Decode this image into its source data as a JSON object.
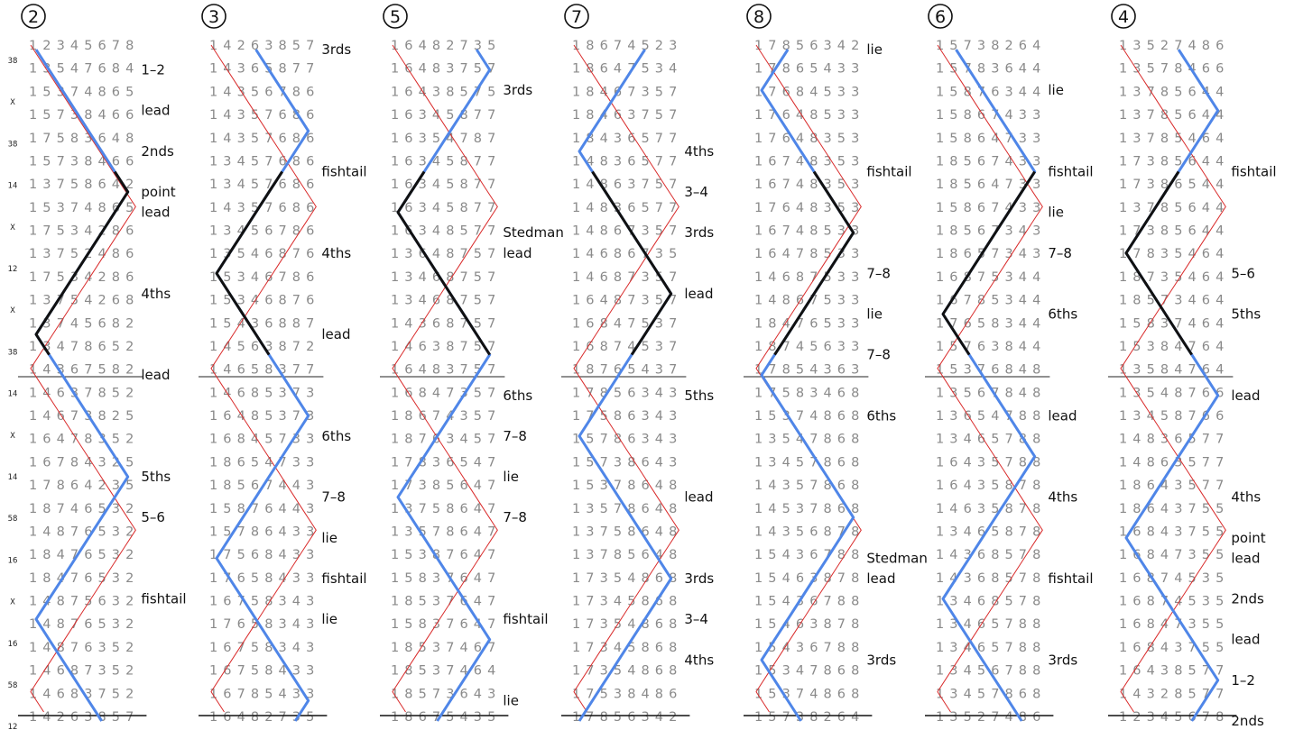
{
  "colors": {
    "red": "#d92b2b",
    "blue": "#4f86e8",
    "black": "#111111",
    "digits": "#8a8a8a",
    "rule": "#222222"
  },
  "side_notation": [
    "38",
    "X",
    "38",
    "14",
    "X",
    "12",
    "X",
    "38",
    "14",
    "X",
    "14",
    "58",
    "16",
    "X",
    "16",
    "58",
    "12"
  ],
  "columns": [
    {
      "number": "2",
      "rows": [
        "12345678",
        "13547684",
        "15374865",
        "15738466",
        "17583648",
        "15738466",
        "13758642",
        "15374865",
        "17534286",
        "13752486",
        "17534286",
        "13754268",
        "13745682",
        "13478652",
        "14367582",
        "14637852",
        "14673825",
        "16478352",
        "16784325",
        "17864235",
        "18746532",
        "14876532",
        "18476532",
        "18476532",
        "14875632",
        "14876532",
        "14876352",
        "14687352",
        "14683752",
        "14263857"
      ],
      "labels": [
        {
          "text": "1–2",
          "row": 1
        },
        {
          "text": "lead",
          "row": 3
        },
        {
          "text": "2nds",
          "row": 5
        },
        {
          "text": "point",
          "row": 7
        },
        {
          "text": "lead",
          "row": 8
        },
        {
          "text": "4ths",
          "row": 12
        },
        {
          "text": "lead",
          "row": 16
        },
        {
          "text": "5ths",
          "row": 21
        },
        {
          "text": "5–6",
          "row": 23
        },
        {
          "text": "fishtail",
          "row": 27
        }
      ]
    },
    {
      "number": "3",
      "rows": [
        "14263857",
        "14365877",
        "14356786",
        "14357686",
        "14357686",
        "13457686",
        "13457686",
        "14357686",
        "13456786",
        "13546876",
        "15346786",
        "15346876",
        "15436887",
        "14563872",
        "14658377",
        "14685373",
        "16485373",
        "16845733",
        "18654733",
        "18567443",
        "15876443",
        "15786433",
        "17568433",
        "17658433",
        "16758343",
        "17658343",
        "16758343",
        "16758433",
        "16785433",
        "16482735"
      ],
      "labels": [
        {
          "text": "3rds",
          "row": 0
        },
        {
          "text": "fishtail",
          "row": 6
        },
        {
          "text": "4ths",
          "row": 10
        },
        {
          "text": "lead",
          "row": 14
        },
        {
          "text": "6ths",
          "row": 19
        },
        {
          "text": "7–8",
          "row": 22
        },
        {
          "text": "lie",
          "row": 24
        },
        {
          "text": "fishtail",
          "row": 26
        },
        {
          "text": "lie",
          "row": 28
        }
      ]
    },
    {
      "number": "5",
      "rows": [
        "16482735",
        "16483757",
        "16438575",
        "16345877",
        "16354787",
        "16345877",
        "16345877",
        "16345877",
        "16348577",
        "13648757",
        "13468757",
        "13468757",
        "14368757",
        "14638757",
        "16483757",
        "16847357",
        "18674357",
        "18763457",
        "17836547",
        "17385647",
        "13758647",
        "13578647",
        "15387647",
        "15837647",
        "18537647",
        "15837647",
        "18537467",
        "18537464",
        "18573643",
        "18675435"
      ],
      "labels": [
        {
          "text": "3rds",
          "row": 2
        },
        {
          "text": "Stedman",
          "row": 9
        },
        {
          "text": "lead",
          "row": 10
        },
        {
          "text": "6ths",
          "row": 17
        },
        {
          "text": "7–8",
          "row": 19
        },
        {
          "text": "lie",
          "row": 21
        },
        {
          "text": "7–8",
          "row": 23
        },
        {
          "text": "fishtail",
          "row": 28
        },
        {
          "text": "lie",
          "row": 32
        }
      ]
    },
    {
      "number": "7",
      "rows": [
        "18674523",
        "18647534",
        "18467357",
        "18463757",
        "18436577",
        "14836577",
        "14863757",
        "14836577",
        "14867357",
        "14686735",
        "14687357",
        "16487357",
        "16847537",
        "16874537",
        "18765437",
        "17856343",
        "17586343",
        "15786343",
        "15738643",
        "15378648",
        "13578648",
        "13758648",
        "13785648",
        "17354868",
        "17345868",
        "17354868",
        "17345868",
        "17354868",
        "17538486",
        "17856342"
      ],
      "labels": [
        {
          "text": "4ths",
          "row": 5
        },
        {
          "text": "3–4",
          "row": 7
        },
        {
          "text": "3rds",
          "row": 9
        },
        {
          "text": "lead",
          "row": 12
        },
        {
          "text": "5ths",
          "row": 17
        },
        {
          "text": "lead",
          "row": 22
        },
        {
          "text": "3rds",
          "row": 26
        },
        {
          "text": "3–4",
          "row": 28
        },
        {
          "text": "4ths",
          "row": 30
        }
      ]
    },
    {
      "number": "8",
      "rows": [
        "17856342",
        "17865433",
        "17684533",
        "17648533",
        "17648353",
        "16748353",
        "16748353",
        "17648353",
        "16748533",
        "16478533",
        "14687533",
        "14867533",
        "18476533",
        "18745633",
        "17854363",
        "17583468",
        "15374868",
        "13547868",
        "13457868",
        "14357868",
        "14537868",
        "14356878",
        "15436788",
        "15463878",
        "15436788",
        "15463878",
        "15436788",
        "15347868",
        "15374868",
        "15738264"
      ],
      "labels": [
        {
          "text": "lie",
          "row": 0
        },
        {
          "text": "fishtail",
          "row": 6
        },
        {
          "text": "7–8",
          "row": 11
        },
        {
          "text": "lie",
          "row": 13
        },
        {
          "text": "7–8",
          "row": 15
        },
        {
          "text": "6ths",
          "row": 18
        },
        {
          "text": "Stedman",
          "row": 25
        },
        {
          "text": "lead",
          "row": 26
        },
        {
          "text": "3rds",
          "row": 30
        }
      ]
    },
    {
      "number": "6",
      "rows": [
        "15738264",
        "15783644",
        "15876344",
        "15867433",
        "15864733",
        "18567433",
        "18564733",
        "15867433",
        "18567343",
        "18657343",
        "16875344",
        "16785344",
        "17658344",
        "15763844",
        "15376848",
        "13567848",
        "13654788",
        "13465788",
        "16435788",
        "16435878",
        "14635878",
        "13465878",
        "14368578",
        "14368578",
        "13468578",
        "13465788",
        "13465788",
        "13456788",
        "13457868",
        "13527486"
      ],
      "labels": [
        {
          "text": "lie",
          "row": 2
        },
        {
          "text": "fishtail",
          "row": 6
        },
        {
          "text": "lie",
          "row": 8
        },
        {
          "text": "7–8",
          "row": 10
        },
        {
          "text": "6ths",
          "row": 13
        },
        {
          "text": "lead",
          "row": 18
        },
        {
          "text": "4ths",
          "row": 22
        },
        {
          "text": "fishtail",
          "row": 26
        },
        {
          "text": "3rds",
          "row": 30
        }
      ]
    },
    {
      "number": "4",
      "rows": [
        "13527486",
        "13578466",
        "13785644",
        "13785644",
        "13785464",
        "17385644",
        "17386544",
        "13785644",
        "17385644",
        "17835464",
        "18735464",
        "18573464",
        "15837464",
        "15384764",
        "13584764",
        "13548766",
        "13458766",
        "14836577",
        "14863577",
        "18643577",
        "18643755",
        "16843755",
        "16847355",
        "16874535",
        "16874535",
        "16847355",
        "16843755",
        "16438577",
        "14328577",
        "12345678"
      ],
      "labels": [
        {
          "text": "fishtail",
          "row": 6
        },
        {
          "text": "5–6",
          "row": 11
        },
        {
          "text": "5ths",
          "row": 13
        },
        {
          "text": "lead",
          "row": 17
        },
        {
          "text": "4ths",
          "row": 22
        },
        {
          "text": "point",
          "row": 24
        },
        {
          "text": "lead",
          "row": 25
        },
        {
          "text": "2nds",
          "row": 27
        },
        {
          "text": "lead",
          "row": 29
        },
        {
          "text": "1–2",
          "row": 31
        },
        {
          "text": "2nds",
          "row": 33
        }
      ]
    }
  ]
}
